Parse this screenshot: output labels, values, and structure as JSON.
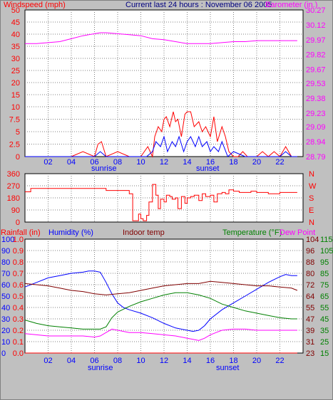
{
  "chart_data": [
    {
      "type": "line",
      "title": "Current last 24 hours : November 06 2005",
      "left_axis_label": "Windspeed (mph)",
      "right_axis_label": "Barometer (in.)",
      "left_ticks": [
        "0",
        "2.5",
        "5",
        "7.5",
        "10",
        "15",
        "20",
        "25",
        "30",
        "35",
        "40",
        "45",
        "50"
      ],
      "right_ticks": [
        "28.79",
        "28.94",
        "29.09",
        "29.23",
        "29.38",
        "29.53",
        "29.67",
        "29.82",
        "29.97",
        "30.12",
        "30.27"
      ],
      "x_ticks": [
        "02",
        "04",
        "06",
        "08",
        "10",
        "12",
        "14",
        "16",
        "18",
        "20",
        "22"
      ],
      "x_notes": [
        "sunrise",
        "sunset"
      ],
      "ylim_left": [
        0,
        50
      ],
      "ylim_right": [
        28.79,
        30.27
      ],
      "grid": true,
      "colors": {
        "windspeed": "#ff0000",
        "gust": "#0000ff",
        "barometer": "#ff00ff",
        "left_text": "#ff0000",
        "right_text": "#ff00ff",
        "title_text": "#000080",
        "plot_bg": "#ffffff",
        "grid": "#808080"
      },
      "series": [
        {
          "name": "Windspeed",
          "x": [
            0,
            1,
            2,
            3,
            4,
            5,
            6,
            6.3,
            6.6,
            7,
            8,
            9,
            10,
            10.6,
            11,
            11.2,
            11.5,
            11.8,
            12,
            12.2,
            12.5,
            12.8,
            13,
            13.2,
            13.5,
            13.8,
            14,
            14.3,
            14.6,
            15,
            15.3,
            15.6,
            16,
            16.3,
            16.6,
            17,
            17.3,
            17.6,
            18,
            18.4,
            18.8,
            19.2,
            20,
            20.5,
            21,
            21.5,
            22,
            22.5,
            23,
            23.5
          ],
          "values": [
            0,
            0,
            0,
            0,
            0,
            1,
            0,
            2.5,
            3,
            0,
            1,
            0,
            0,
            2,
            0,
            4,
            6,
            5,
            7.5,
            8,
            6,
            9,
            7,
            7.5,
            4,
            8.5,
            9,
            9,
            6,
            7,
            5,
            6,
            4,
            8,
            3,
            6,
            4,
            1,
            0,
            0,
            1,
            0,
            0,
            1,
            0,
            1,
            0,
            2,
            0,
            0
          ]
        },
        {
          "name": "Gust",
          "x": [
            0,
            6,
            6.5,
            7,
            10.5,
            11,
            11.3,
            11.7,
            12,
            12.3,
            12.7,
            13,
            13.3,
            13.7,
            14,
            14.3,
            14.7,
            15,
            15.3,
            15.7,
            16,
            16.3,
            16.7,
            17,
            17.5,
            18,
            19,
            22,
            22.5,
            23,
            23.5
          ],
          "values": [
            0,
            0,
            1,
            0,
            0,
            1,
            3,
            2,
            4,
            1,
            3,
            2,
            4,
            1,
            3,
            4,
            2,
            4,
            2,
            3,
            1,
            2,
            1,
            3,
            0,
            1,
            0,
            0,
            1,
            0,
            0
          ]
        },
        {
          "name": "Barometer",
          "x": [
            0,
            1,
            2,
            3,
            4,
            5,
            6,
            6.5,
            7,
            8,
            9,
            10,
            11,
            12,
            13,
            14,
            15,
            16,
            17,
            18,
            19,
            20,
            21,
            22,
            23,
            23.5
          ],
          "values": [
            29.93,
            29.93,
            29.94,
            29.95,
            29.98,
            30.01,
            30.03,
            30.04,
            30.04,
            30.03,
            30.02,
            30.01,
            29.98,
            29.97,
            29.95,
            29.93,
            29.93,
            29.93,
            29.94,
            29.95,
            29.95,
            29.96,
            29.96,
            29.96,
            29.96,
            29.96
          ]
        }
      ]
    },
    {
      "type": "line",
      "left_ticks": [
        "0",
        "90",
        "180",
        "270",
        "360"
      ],
      "right_ticks": [
        "N",
        "W",
        "S",
        "E",
        "N"
      ],
      "ylim": [
        0,
        360
      ],
      "colors": {
        "direction": "#ff0000",
        "left_text": "#ff0000",
        "right_text": "#ff0000"
      },
      "series": [
        {
          "name": "Wind direction",
          "x": [
            0,
            0.2,
            0.5,
            5,
            7,
            7.5,
            8,
            8.5,
            8.8,
            9,
            9.3,
            9.5,
            9.8,
            10,
            10.2,
            10.5,
            10.7,
            11,
            11.1,
            11.3,
            11.5,
            11.7,
            12,
            12.2,
            12.5,
            12.7,
            13,
            13.2,
            13.5,
            13.8,
            14,
            14.3,
            14.6,
            15,
            15.3,
            15.6,
            16,
            16.3,
            16.6,
            17,
            17.3,
            17.6,
            18,
            18.5,
            19,
            19.5,
            20,
            21,
            22,
            23,
            23.5
          ],
          "values": [
            225,
            225,
            250,
            250,
            235,
            235,
            235,
            235,
            235,
            210,
            10,
            10,
            60,
            25,
            10,
            50,
            150,
            280,
            280,
            200,
            100,
            170,
            150,
            200,
            190,
            170,
            180,
            100,
            190,
            140,
            180,
            190,
            200,
            160,
            210,
            190,
            200,
            150,
            210,
            220,
            210,
            240,
            230,
            220,
            220,
            230,
            220,
            210,
            220,
            220,
            220
          ]
        }
      ]
    },
    {
      "type": "line",
      "labels": [
        "Rainfall (in)",
        "Humidity (%)",
        "Indoor temp",
        "Temperature (°F)",
        "Dew Point"
      ],
      "rain_ticks": [
        "0.0",
        "0.1",
        "0.2",
        "0.3",
        "0.4",
        "0.5",
        "0.6",
        "0.7",
        "0.8",
        "0.9",
        "1.0"
      ],
      "humidity_ticks": [
        "0",
        "10",
        "20",
        "30",
        "40",
        "50",
        "60",
        "70",
        "80",
        "90",
        "100"
      ],
      "indoor_ticks": [
        "23",
        "31",
        "39",
        "47",
        "55",
        "64",
        "72",
        "80",
        "88",
        "96",
        "104"
      ],
      "temp_ticks": [
        "15",
        "25",
        "35",
        "45",
        "55",
        "65",
        "75",
        "85",
        "95",
        "105",
        "115"
      ],
      "x_ticks": [
        "02",
        "04",
        "06",
        "08",
        "10",
        "12",
        "14",
        "16",
        "18",
        "20",
        "22"
      ],
      "x_notes": [
        "sunrise",
        "sunset"
      ],
      "ylim_temp": [
        15,
        115
      ],
      "ylim_humidity": [
        0,
        100
      ],
      "colors": {
        "rainfall": "#ff0000",
        "humidity": "#0000ff",
        "indoor": "#800000",
        "temperature": "#008000",
        "dewpoint": "#ff00ff",
        "rain_text": "#ff0000",
        "humidity_text": "#0000ff",
        "indoor_text": "#800000",
        "temp_text": "#008000",
        "dew_text": "#ff00ff"
      },
      "series": [
        {
          "name": "Humidity",
          "axis": "humidity",
          "x": [
            0,
            1,
            2,
            3,
            4,
            5,
            5.5,
            6,
            6.5,
            7,
            7.5,
            8,
            8.5,
            9,
            10,
            11,
            12,
            13,
            14,
            14.5,
            15,
            15.5,
            16,
            17,
            18,
            19,
            20,
            21,
            22,
            22.5,
            23,
            23.5
          ],
          "values": [
            58,
            62,
            66,
            68,
            70,
            71,
            72,
            72,
            71,
            62,
            52,
            44,
            40,
            38,
            35,
            31,
            26,
            22,
            20,
            19,
            20,
            24,
            30,
            38,
            44,
            50,
            56,
            62,
            67,
            69,
            68,
            68
          ]
        },
        {
          "name": "Indoor temp",
          "axis": "temp",
          "x": [
            0,
            1,
            2,
            3,
            4,
            5,
            6,
            7,
            8,
            9,
            10,
            11,
            12,
            13,
            14,
            15,
            16,
            17,
            18,
            19,
            20,
            21,
            22,
            23,
            23.5
          ],
          "values": [
            76,
            75,
            74,
            72,
            70,
            69,
            67,
            66,
            67,
            68,
            70,
            72,
            74,
            75,
            76,
            76,
            78,
            77,
            76,
            75,
            74,
            74,
            73,
            72,
            70
          ]
        },
        {
          "name": "Temperature",
          "axis": "temp",
          "x": [
            0,
            1,
            2,
            3,
            4,
            5,
            6,
            6.5,
            7,
            7.5,
            8,
            9,
            10,
            11,
            12,
            13,
            14,
            15,
            16,
            17,
            18,
            19,
            20,
            21,
            22,
            23,
            23.5
          ],
          "values": [
            44,
            41,
            39,
            38,
            37,
            36,
            36,
            36,
            38,
            46,
            51,
            56,
            60,
            63,
            66,
            68,
            68,
            66,
            63,
            58,
            55,
            52,
            50,
            48,
            46,
            45,
            45
          ]
        },
        {
          "name": "Dew Point",
          "axis": "temp",
          "x": [
            0,
            1,
            2,
            3,
            4,
            5,
            6,
            6.5,
            7,
            7.5,
            8,
            9,
            10,
            11,
            12,
            13,
            14,
            14.5,
            15,
            15.5,
            16,
            16.5,
            17,
            18,
            19,
            20,
            21,
            22,
            23,
            23.5
          ],
          "values": [
            32,
            31,
            30,
            30,
            30,
            30,
            29,
            30,
            33,
            36,
            35,
            33,
            33,
            32,
            31,
            30,
            28,
            27,
            26,
            28,
            31,
            33,
            35,
            36,
            36,
            35,
            35,
            35,
            35,
            35
          ]
        },
        {
          "name": "Rainfall",
          "axis": "rain",
          "x": [
            0,
            23.5
          ],
          "values": [
            0,
            0
          ]
        }
      ]
    }
  ]
}
